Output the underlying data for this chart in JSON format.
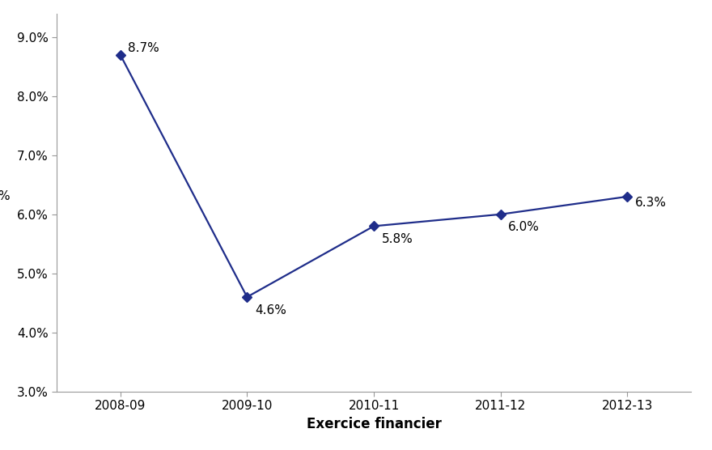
{
  "categories": [
    "2008-09",
    "2009-10",
    "2010-11",
    "2011-12",
    "2012-13"
  ],
  "values": [
    8.7,
    4.6,
    5.8,
    6.0,
    6.3
  ],
  "labels": [
    "8.7%",
    "4.6%",
    "5.8%",
    "6.0%",
    "6.3%"
  ],
  "line_color": "#1F2D8A",
  "marker": "D",
  "marker_size": 6,
  "xlabel": "Exercice financier",
  "ylabel": "%",
  "ylim": [
    3.0,
    9.4
  ],
  "yticks": [
    3.0,
    4.0,
    5.0,
    6.0,
    7.0,
    8.0,
    9.0
  ],
  "xlabel_fontsize": 12,
  "ylabel_fontsize": 11,
  "tick_fontsize": 11,
  "label_fontsize": 11,
  "background_color": "#ffffff",
  "label_offsets_data": [
    [
      0.06,
      0.12
    ],
    [
      0.06,
      -0.22
    ],
    [
      0.06,
      -0.22
    ],
    [
      0.06,
      -0.22
    ],
    [
      0.06,
      -0.1
    ]
  ]
}
